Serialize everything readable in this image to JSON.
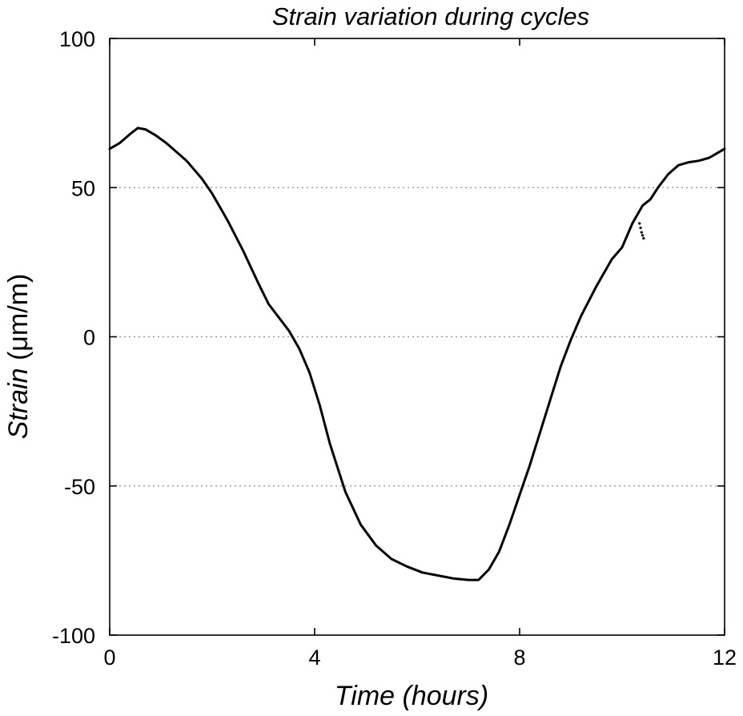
{
  "chart_data": {
    "type": "line",
    "title": "Strain variation during cycles",
    "xlabel": "Time (hours)",
    "ylabel_italic": "Strain",
    "ylabel_unit": " (μm/m)",
    "xlim": [
      0,
      12
    ],
    "ylim": [
      -100,
      100
    ],
    "xticks": [
      0,
      4,
      8,
      12
    ],
    "yticks": [
      -100,
      -50,
      0,
      50,
      100
    ],
    "xtick_labels": [
      "0",
      "4",
      "8",
      "12"
    ],
    "ytick_labels": [
      "-100",
      "-50",
      "0",
      "50",
      "100"
    ],
    "grid": "horizontal dotted at -50, 0, 50",
    "line_color": "#000000",
    "series": [
      {
        "values_x": [
          0,
          0.2,
          0.4,
          0.55,
          0.7,
          0.9,
          1.1,
          1.3,
          1.5,
          1.6,
          1.8,
          2.0,
          2.3,
          2.6,
          2.9,
          3.1,
          3.3,
          3.5,
          3.7,
          3.9,
          4.1,
          4.3,
          4.6,
          4.9,
          5.2,
          5.5,
          5.8,
          6.1,
          6.4,
          6.7,
          7.0,
          7.2,
          7.4,
          7.6,
          7.8,
          8.0,
          8.2,
          8.4,
          8.6,
          8.8,
          9.0,
          9.2,
          9.5,
          9.8,
          10.0,
          10.2,
          10.4,
          10.55,
          10.7,
          10.9,
          11.1,
          11.3,
          11.5,
          11.7,
          11.85,
          12.0
        ],
        "values_y": [
          63,
          65,
          68,
          70,
          69.5,
          67.5,
          65,
          62,
          59,
          57,
          53,
          48,
          39,
          29,
          18,
          11,
          6.5,
          2,
          -4,
          -12,
          -23,
          -36,
          -52,
          -63,
          -70,
          -74.5,
          -77,
          -79,
          -80,
          -81,
          -81.5,
          -81.5,
          -78,
          -72,
          -63,
          -53,
          -43,
          -32,
          -21,
          -10,
          -1,
          7,
          17,
          26,
          30,
          38,
          44,
          46,
          50,
          54.5,
          57.5,
          58.5,
          59,
          60,
          61.5,
          63
        ]
      },
      {
        "values_x": [
          10.34,
          10.36,
          10.38,
          10.4,
          10.42
        ],
        "values_y": [
          38,
          36.5,
          35,
          34,
          33
        ]
      }
    ]
  }
}
